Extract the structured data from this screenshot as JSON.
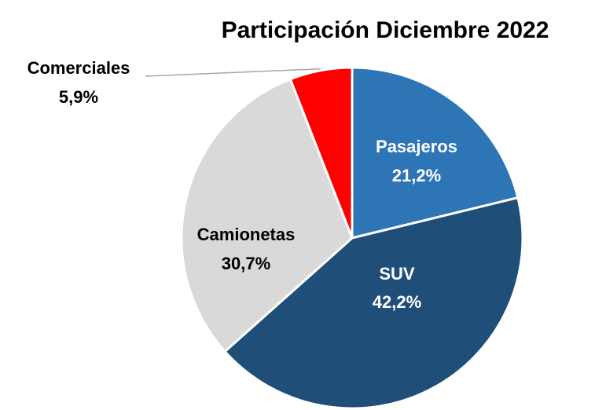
{
  "chart_data": {
    "type": "pie",
    "title": "Participación Diciembre 2022",
    "categories": [
      "Pasajeros",
      "SUV",
      "Camionetas",
      "Comerciales"
    ],
    "values": [
      21.2,
      42.2,
      30.7,
      5.9
    ],
    "value_labels": [
      "21,2%",
      "42,2%",
      "30,7%",
      "5,9%"
    ],
    "colors": [
      "#2e75b6",
      "#1f4e79",
      "#d9d9d9",
      "#ff0000"
    ]
  }
}
